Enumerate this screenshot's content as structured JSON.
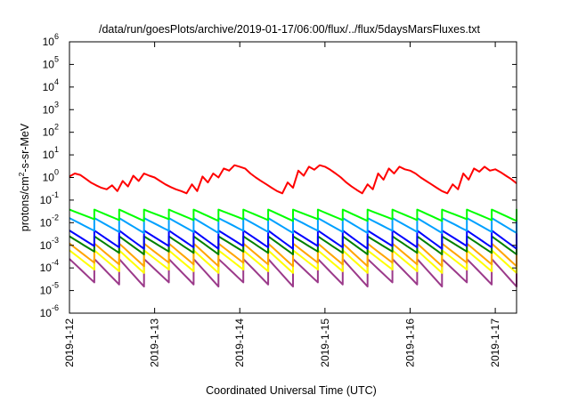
{
  "chart_data": {
    "type": "line",
    "title": "/data/run/goesPlots/archive/2019-01-17/06:00/flux/../flux/5daysMarsFluxes.txt",
    "xlabel": "Coordinated Universal Time (UTC)",
    "ylabel": "protons/cm^2-s-sr-MeV",
    "ylabel_parts": {
      "before": "protons/cm",
      "sup": "2",
      "after": "-s-sr-MeV"
    },
    "y_scale": "log",
    "ylim": [
      1e-06,
      1000000.0
    ],
    "xlim": [
      "2019-01-12T00:00",
      "2019-01-17T06:00"
    ],
    "grid": false,
    "legend": "none",
    "x_ticks": [
      "2019-1-12",
      "2019-1-13",
      "2019-1-14",
      "2019-1-15",
      "2019-1-16",
      "2019-1-17"
    ],
    "y_ticks": [
      {
        "value": 1e-06,
        "base": "10",
        "exp": "-6"
      },
      {
        "value": 1e-05,
        "base": "10",
        "exp": "-5"
      },
      {
        "value": 0.0001,
        "base": "10",
        "exp": "-4"
      },
      {
        "value": 0.001,
        "base": "10",
        "exp": "-3"
      },
      {
        "value": 0.01,
        "base": "10",
        "exp": "-2"
      },
      {
        "value": 0.1,
        "base": "10",
        "exp": "-1"
      },
      {
        "value": 1,
        "base": "10",
        "exp": "0"
      },
      {
        "value": 10,
        "base": "10",
        "exp": "1"
      },
      {
        "value": 100,
        "base": "10",
        "exp": "2"
      },
      {
        "value": 1000,
        "base": "10",
        "exp": "3"
      },
      {
        "value": 10000,
        "base": "10",
        "exp": "4"
      },
      {
        "value": 100000,
        "base": "10",
        "exp": "5"
      },
      {
        "value": 1000000,
        "base": "10",
        "exp": "6"
      }
    ],
    "series": [
      {
        "color": "#ff0000",
        "x": [
          "2019-01-12T00:00",
          "2019-01-12T01:30",
          "2019-01-12T03:00",
          "2019-01-12T04:30",
          "2019-01-12T06:00",
          "2019-01-12T07:30",
          "2019-01-12T09:00",
          "2019-01-12T10:30",
          "2019-01-12T12:00",
          "2019-01-12T13:30",
          "2019-01-12T15:00",
          "2019-01-12T16:30",
          "2019-01-12T18:00",
          "2019-01-12T19:30",
          "2019-01-12T21:00",
          "2019-01-12T22:30",
          "2019-01-13T00:00",
          "2019-01-13T01:30",
          "2019-01-13T03:00",
          "2019-01-13T04:30",
          "2019-01-13T06:00",
          "2019-01-13T07:30",
          "2019-01-13T09:00",
          "2019-01-13T10:30",
          "2019-01-13T12:00",
          "2019-01-13T13:30",
          "2019-01-13T15:00",
          "2019-01-13T16:30",
          "2019-01-13T18:00",
          "2019-01-13T19:30",
          "2019-01-13T21:00",
          "2019-01-13T22:30",
          "2019-01-14T00:00",
          "2019-01-14T01:30",
          "2019-01-14T03:00",
          "2019-01-14T04:30",
          "2019-01-14T06:00",
          "2019-01-14T07:30",
          "2019-01-14T09:00",
          "2019-01-14T10:30",
          "2019-01-14T12:00",
          "2019-01-14T13:30",
          "2019-01-14T15:00",
          "2019-01-14T16:30",
          "2019-01-14T18:00",
          "2019-01-14T19:30",
          "2019-01-14T21:00",
          "2019-01-14T22:30",
          "2019-01-15T00:00",
          "2019-01-15T01:30",
          "2019-01-15T03:00",
          "2019-01-15T04:30",
          "2019-01-15T06:00",
          "2019-01-15T07:30",
          "2019-01-15T09:00",
          "2019-01-15T10:30",
          "2019-01-15T12:00",
          "2019-01-15T13:30",
          "2019-01-15T15:00",
          "2019-01-15T16:30",
          "2019-01-15T18:00",
          "2019-01-15T19:30",
          "2019-01-15T21:00",
          "2019-01-15T22:30",
          "2019-01-16T00:00",
          "2019-01-16T01:30",
          "2019-01-16T03:00",
          "2019-01-16T04:30",
          "2019-01-16T06:00",
          "2019-01-16T07:30",
          "2019-01-16T09:00",
          "2019-01-16T10:30",
          "2019-01-16T12:00",
          "2019-01-16T13:30",
          "2019-01-16T15:00",
          "2019-01-16T16:30",
          "2019-01-16T18:00",
          "2019-01-16T19:30",
          "2019-01-16T21:00",
          "2019-01-16T22:30",
          "2019-01-17T00:00",
          "2019-01-17T01:30",
          "2019-01-17T03:00",
          "2019-01-17T04:30",
          "2019-01-17T06:00"
        ],
        "y": [
          1.1,
          1.5,
          1.3,
          0.9,
          0.6,
          0.45,
          0.35,
          0.3,
          0.45,
          0.25,
          0.7,
          0.4,
          1.2,
          0.7,
          1.5,
          1.2,
          1.0,
          0.7,
          0.5,
          0.38,
          0.3,
          0.25,
          0.2,
          0.5,
          0.25,
          1.1,
          0.6,
          1.5,
          1.0,
          2.5,
          2.0,
          3.5,
          3.0,
          2.5,
          1.5,
          1.0,
          0.7,
          0.5,
          0.35,
          0.25,
          0.2,
          0.6,
          0.35,
          2.0,
          1.2,
          3.0,
          2.2,
          3.5,
          3.0,
          2.2,
          1.5,
          1.0,
          0.6,
          0.4,
          0.28,
          0.2,
          0.5,
          0.3,
          1.5,
          0.8,
          2.5,
          1.5,
          3.0,
          2.3,
          2.0,
          1.5,
          1.0,
          0.7,
          0.5,
          0.35,
          0.25,
          0.2,
          0.5,
          0.3,
          1.5,
          0.8,
          2.5,
          1.8,
          3.0,
          2.0,
          2.3,
          1.7,
          1.2,
          0.85,
          0.55
        ]
      },
      {
        "color": "#00ff00",
        "y_peak": 0.038,
        "y_trough": 0.012,
        "period_hours": 7.0,
        "x_start": "2019-01-12T00:00",
        "x_end": "2019-01-17T06:00"
      },
      {
        "color": "#00a0ff",
        "y_peak": 0.016,
        "y_trough": 0.0035,
        "period_hours": 7.0,
        "x_start": "2019-01-12T00:00",
        "x_end": "2019-01-17T06:00"
      },
      {
        "color": "#0000ff",
        "y_peak": 0.0045,
        "y_trough": 0.0007,
        "period_hours": 7.0,
        "x_start": "2019-01-12T00:00",
        "x_end": "2019-01-17T06:00"
      },
      {
        "color": "#008000",
        "y_peak": 0.0025,
        "y_trough": 0.0004,
        "period_hours": 7.0,
        "x_start": "2019-01-12T00:00",
        "x_end": "2019-01-17T06:00"
      },
      {
        "color": "#ffa500",
        "y_peak": 0.0012,
        "y_trough": 0.00012,
        "period_hours": 7.0,
        "x_start": "2019-01-12T00:00",
        "x_end": "2019-01-17T06:00"
      },
      {
        "color": "#ffff00",
        "y_peak": 0.0006,
        "y_trough": 6e-05,
        "period_hours": 7.0,
        "x_start": "2019-01-12T00:00",
        "x_end": "2019-01-17T06:00"
      },
      {
        "color": "#9b3a8a",
        "y_peak": 0.00025,
        "y_trough": 1.5e-05,
        "period_hours": 7.0,
        "x_start": "2019-01-12T00:00",
        "x_end": "2019-01-17T06:00"
      }
    ]
  }
}
